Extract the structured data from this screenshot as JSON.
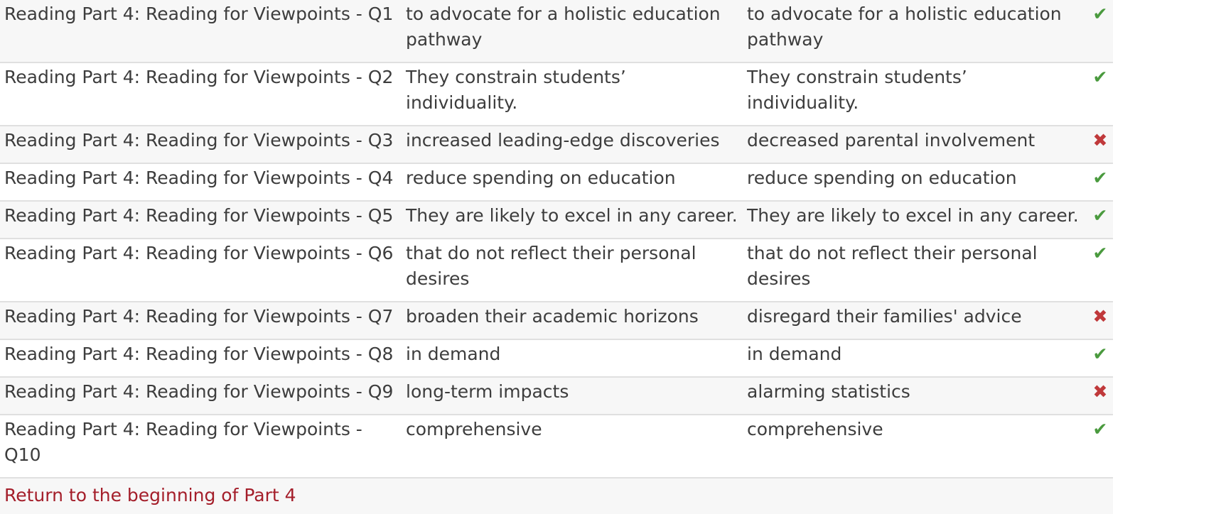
{
  "results": {
    "rows": [
      {
        "question": "Reading Part 4: Reading for Viewpoints - Q1",
        "your_answer": "to advocate for a holistic education pathway",
        "correct_answer": "to advocate for a holistic education pathway",
        "status": "correct"
      },
      {
        "question": "Reading Part 4: Reading for Viewpoints - Q2",
        "your_answer": "They constrain students’ individuality.",
        "correct_answer": "They constrain students’ individuality.",
        "status": "correct"
      },
      {
        "question": "Reading Part 4: Reading for Viewpoints - Q3",
        "your_answer": "increased leading-edge discoveries",
        "correct_answer": "decreased parental involvement",
        "status": "wrong"
      },
      {
        "question": "Reading Part 4: Reading for Viewpoints - Q4",
        "your_answer": "reduce spending on education",
        "correct_answer": "reduce spending on education",
        "status": "correct"
      },
      {
        "question": "Reading Part 4: Reading for Viewpoints - Q5",
        "your_answer": "They are likely to excel in any career.",
        "correct_answer": "They are likely to excel in any career.",
        "status": "correct"
      },
      {
        "question": "Reading Part 4: Reading for Viewpoints - Q6",
        "your_answer": "that do not reflect their personal desires",
        "correct_answer": "that do not reflect their personal desires",
        "status": "correct"
      },
      {
        "question": "Reading Part 4: Reading for Viewpoints - Q7",
        "your_answer": "broaden their academic horizons",
        "correct_answer": "disregard their families' advice",
        "status": "wrong"
      },
      {
        "question": "Reading Part 4: Reading for Viewpoints - Q8",
        "your_answer": "in demand",
        "correct_answer": "in demand",
        "status": "correct"
      },
      {
        "question": "Reading Part 4: Reading for Viewpoints - Q9",
        "your_answer": "long-term impacts",
        "correct_answer": "alarming statistics",
        "status": "wrong"
      },
      {
        "question": "Reading Part 4: Reading for Viewpoints - Q10",
        "your_answer": "comprehensive",
        "correct_answer": "comprehensive",
        "status": "correct"
      }
    ]
  },
  "icons": {
    "correct": {
      "name": "checkmark-icon",
      "glyph": "✔",
      "color": "#4a9a3e"
    },
    "wrong": {
      "name": "cross-icon",
      "glyph": "✖",
      "color": "#c0393b"
    }
  },
  "footer": {
    "return_link_label": "Return to the beginning of Part 4",
    "link_color": "#a41e2a"
  }
}
